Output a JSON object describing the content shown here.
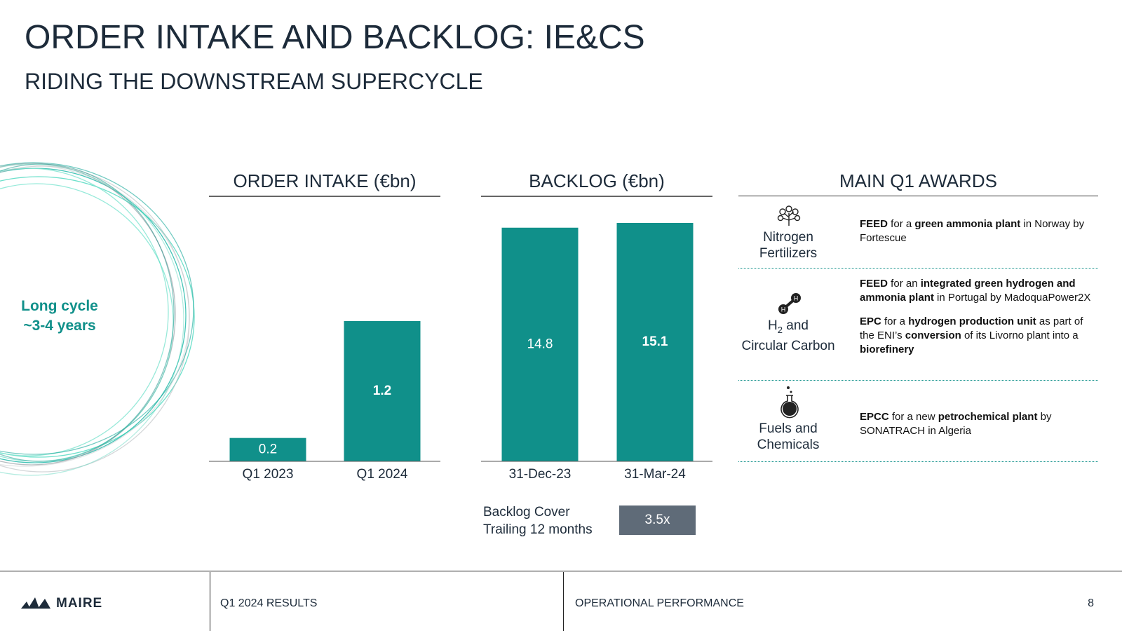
{
  "header": {
    "title": "ORDER INTAKE AND BACKLOG: IE&CS",
    "subtitle": "RIDING THE DOWNSTREAM SUPERCYCLE"
  },
  "cycle_note": [
    "Long cycle",
    "~3-4 years"
  ],
  "chart_data": [
    {
      "type": "bar",
      "title": "ORDER INTAKE (€bn)",
      "categories": [
        "Q1 2023",
        "Q1 2024"
      ],
      "values": [
        0.2,
        1.2
      ],
      "color": "#10908a"
    },
    {
      "type": "bar",
      "title": "BACKLOG (€bn)",
      "categories": [
        "31-Dec-23",
        "31-Mar-24"
      ],
      "values": [
        14.8,
        15.1
      ],
      "color": "#10908a"
    }
  ],
  "backlog_cover": {
    "label": [
      "Backlog Cover",
      "Trailing 12 months"
    ],
    "value": "3.5x"
  },
  "awards": {
    "title": "MAIN Q1 AWARDS",
    "rows": [
      {
        "sector": [
          [
            {
              "text": "Nitrogen"
            }
          ],
          [
            {
              "text": "Fertilizers"
            }
          ]
        ],
        "paragraphs": [
          [
            {
              "text": "FEED",
              "bold": true
            },
            {
              "text": " for a "
            },
            {
              "text": "green ammonia plant",
              "bold": true
            },
            {
              "text": " in Norway by Fortescue"
            }
          ]
        ]
      },
      {
        "sector": [
          [
            {
              "text": "H"
            },
            {
              "text": "2",
              "sub": true
            },
            {
              "text": " and"
            }
          ],
          [
            {
              "text": "Circular Carbon"
            }
          ]
        ],
        "paragraphs": [
          [
            {
              "text": "FEED",
              "bold": true
            },
            {
              "text": " for an "
            },
            {
              "text": "integrated green hydrogen and ammonia plant",
              "bold": true
            },
            {
              "text": " in Portugal by MadoquaPower2X"
            }
          ],
          [
            {
              "text": "EPC",
              "bold": true
            },
            {
              "text": " for a "
            },
            {
              "text": "hydrogen production unit",
              "bold": true
            },
            {
              "text": " as part of the ENI’s "
            },
            {
              "text": "conversion",
              "bold": true
            },
            {
              "text": " of its Livorno plant into a "
            },
            {
              "text": "biorefinery",
              "bold": true
            }
          ]
        ]
      },
      {
        "sector": [
          [
            {
              "text": "Fuels and"
            }
          ],
          [
            {
              "text": "Chemicals"
            }
          ]
        ],
        "paragraphs": [
          [
            {
              "text": "EPCC",
              "bold": true
            },
            {
              "text": " for a new "
            },
            {
              "text": "petrochemical plant",
              "bold": true
            },
            {
              "text": " by SONATRACH in Algeria"
            }
          ]
        ]
      }
    ]
  },
  "footer": {
    "logo": "MAIRE",
    "report": "Q1 2024 RESULTS",
    "section": "OPERATIONAL PERFORMANCE",
    "page": "8"
  }
}
